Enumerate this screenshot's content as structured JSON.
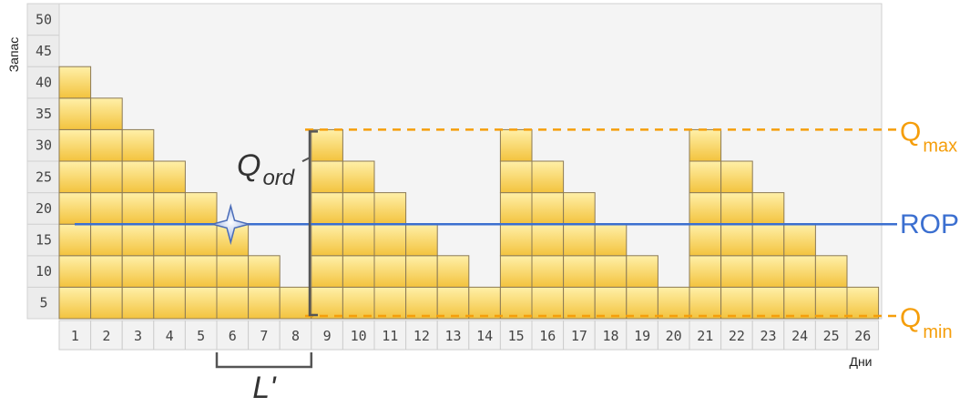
{
  "chart_data": {
    "type": "bar",
    "xlabel": "Дни",
    "ylabel": "Запас",
    "ylim": [
      0,
      50
    ],
    "y_ticks": [
      "5",
      "10",
      "15",
      "20",
      "25",
      "30",
      "35",
      "40",
      "45",
      "50"
    ],
    "categories": [
      "1",
      "2",
      "3",
      "4",
      "5",
      "6",
      "7",
      "8",
      "9",
      "10",
      "11",
      "12",
      "13",
      "14",
      "15",
      "16",
      "17",
      "18",
      "19",
      "20",
      "21",
      "22",
      "23",
      "24",
      "25",
      "26"
    ],
    "values": [
      40,
      35,
      30,
      25,
      20,
      15,
      10,
      5,
      30,
      25,
      20,
      15,
      10,
      5,
      30,
      25,
      20,
      15,
      10,
      5,
      30,
      25,
      20,
      15,
      10,
      5
    ],
    "unit_block": 5,
    "grid": false,
    "colors": {
      "block_top": "#fff0a8",
      "block_bottom": "#f3c33e",
      "block_border": "#8c7a55",
      "q_lines": "#f59e0b",
      "rop_line": "#3b6fd0",
      "annotation": "#555555"
    },
    "reference_lines": [
      {
        "label": "Q",
        "subscript": "max",
        "y": 30,
        "style": "dashed",
        "color": "#f59e0b"
      },
      {
        "label": "ROP",
        "y": 15,
        "style": "solid",
        "color": "#3b6fd0"
      },
      {
        "label": "Q",
        "subscript": "min",
        "y": 0,
        "style": "dashed",
        "color": "#f59e0b"
      }
    ],
    "annotations": {
      "q_ord": {
        "label": "Q",
        "subscript": "ord",
        "from": 0,
        "to": 30
      },
      "lead_time": {
        "label": "L'",
        "from_day": 6,
        "to_day": 8
      },
      "reorder_marker": {
        "day": 5.5,
        "y": 15
      }
    }
  }
}
